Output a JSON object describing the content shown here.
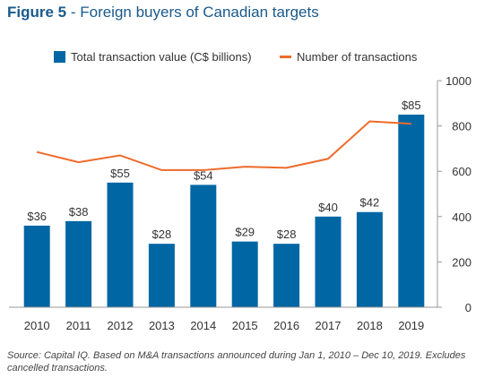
{
  "title": {
    "figure": "Figure 5",
    "text": " - Foreign buyers of Canadian targets"
  },
  "colors": {
    "bar": "#0066a4",
    "line": "#ee6a2a",
    "axis": "#999999",
    "title": "#1a5a8c"
  },
  "chart_data": {
    "type": "bar",
    "categories": [
      "2010",
      "2011",
      "2012",
      "2013",
      "2014",
      "2015",
      "2016",
      "2017",
      "2018",
      "2019"
    ],
    "series": [
      {
        "name": "Total transaction value (C$ billions)",
        "type": "bar",
        "axis": "left",
        "values": [
          36,
          38,
          55,
          28,
          54,
          29,
          28,
          40,
          42,
          85
        ],
        "labels": [
          "$36",
          "$38",
          "$55",
          "$28",
          "$54",
          "$29",
          "$28",
          "$40",
          "$42",
          "$85"
        ]
      },
      {
        "name": "Number of transactions",
        "type": "line",
        "axis": "right",
        "values": [
          685,
          640,
          670,
          605,
          605,
          620,
          615,
          655,
          820,
          810
        ]
      }
    ],
    "y_left_lim": [
      0,
      100
    ],
    "y_right_lim": [
      0,
      1000
    ],
    "y_right_ticks": [
      "0",
      "200",
      "400",
      "600",
      "800",
      "1000"
    ],
    "grid": false,
    "legend_position": "top"
  },
  "source": "Source: Capital IQ. Based on M&A transactions announced during Jan 1, 2010 – Dec 10, 2019. Excludes cancelled transactions."
}
